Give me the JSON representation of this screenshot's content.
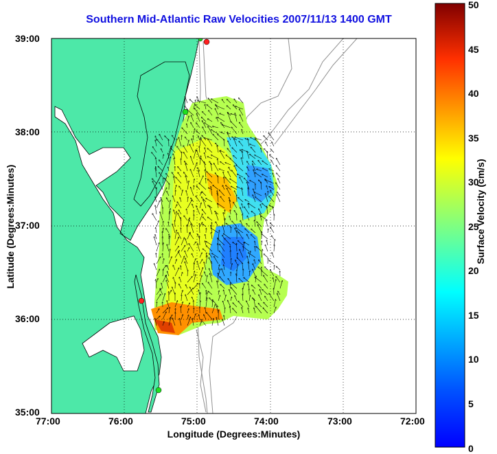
{
  "title": "Southern Mid-Atlantic Raw Velocities 2007/11/13 1400 GMT",
  "xlabel": "Longitude (Degrees:Minutes)",
  "ylabel": "Latitude (Degrees:Minutes)",
  "x_ticks": [
    "77:00",
    "76:00",
    "75:00",
    "74:00",
    "73:00",
    "72:00"
  ],
  "y_ticks": [
    "39:00",
    "38:00",
    "37:00",
    "36:00",
    "35:00"
  ],
  "colorbar": {
    "label": "Surface Velocity (cm/s)",
    "ticks": [
      "0",
      "5",
      "10",
      "15",
      "20",
      "25",
      "30",
      "35",
      "40",
      "45",
      "50"
    ],
    "range": [
      0,
      50
    ],
    "colormap": "jet"
  },
  "colors": {
    "land": "#4de8a8",
    "title": "#1010e0",
    "bathymetry": "#909090"
  }
}
